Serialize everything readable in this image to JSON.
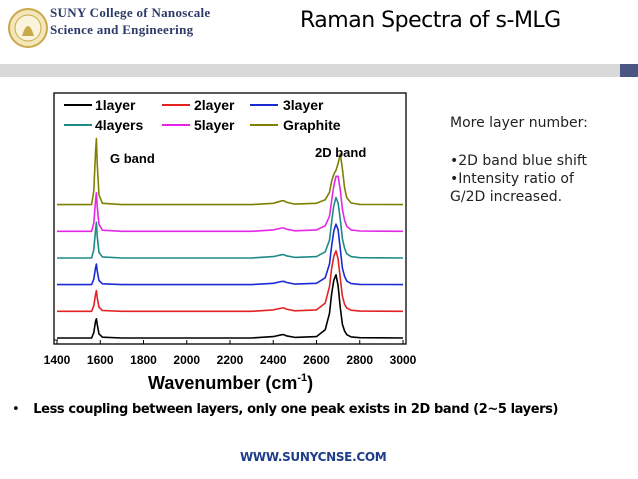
{
  "header": {
    "logo_line1": "SUNY College of Nanoscale",
    "logo_line2": "Science and Engineering",
    "title": "Raman Spectra of s-MLG",
    "accent_color": "#4a5783"
  },
  "notes": {
    "heading": "More layer number:",
    "bullet1": "•2D band blue shift",
    "bullet2": "•Intensity ratio of",
    "bullet3": "G/2D increased."
  },
  "footer": {
    "bullet_text": "Less coupling between layers, only one peak exists in 2D band (2~5 layers)",
    "website": "WWW.SUNYCNSE.COM"
  },
  "chart_data": {
    "type": "line",
    "title": "",
    "xlabel": "Wavenumber (cm",
    "xlabel_sup": "-1",
    "xlabel_close": ")",
    "ylabel": "",
    "xlim": [
      1400,
      3000
    ],
    "x_ticks": [
      1400,
      1600,
      1800,
      2000,
      2200,
      2400,
      2600,
      2800,
      3000
    ],
    "annotations": {
      "g_band": "G band",
      "band_2d": "2D band"
    },
    "x": [
      1400,
      1500,
      1560,
      1570,
      1578,
      1582,
      1586,
      1594,
      1610,
      1700,
      2300,
      2400,
      2440,
      2450,
      2460,
      2500,
      2600,
      2640,
      2660,
      2670,
      2680,
      2690,
      2700,
      2710,
      2720,
      2730,
      2740,
      2760,
      2800,
      3000
    ],
    "series": [
      {
        "name": "1layer",
        "color": "#000000",
        "offset": 0,
        "values": [
          0,
          0,
          0,
          0.2,
          0.6,
          0.7,
          0.5,
          0.15,
          0.03,
          0,
          0,
          0.05,
          0.12,
          0.12,
          0.08,
          0.02,
          0.05,
          0.3,
          0.9,
          1.6,
          2.1,
          2.3,
          1.9,
          1.1,
          0.5,
          0.25,
          0.12,
          0.04,
          0.01,
          0
        ]
      },
      {
        "name": "2layer",
        "color": "#e32222",
        "offset": 0.97,
        "values": [
          0,
          0,
          0,
          0.2,
          0.6,
          0.75,
          0.5,
          0.15,
          0.03,
          0,
          0,
          0.05,
          0.12,
          0.12,
          0.08,
          0.02,
          0.05,
          0.3,
          0.9,
          1.55,
          2.0,
          2.2,
          1.9,
          1.2,
          0.55,
          0.25,
          0.12,
          0.04,
          0.01,
          0
        ]
      },
      {
        "name": "3layer",
        "color": "#1b2bd4",
        "offset": 1.94,
        "values": [
          0,
          0,
          0,
          0.2,
          0.6,
          0.75,
          0.5,
          0.15,
          0.03,
          0,
          0,
          0.05,
          0.12,
          0.12,
          0.08,
          0.02,
          0.05,
          0.25,
          0.75,
          1.4,
          1.95,
          2.2,
          2.0,
          1.3,
          0.6,
          0.3,
          0.13,
          0.04,
          0.01,
          0
        ]
      },
      {
        "name": "4layers",
        "color": "#1e8a8a",
        "offset": 2.91,
        "values": [
          0,
          0,
          0,
          0.3,
          1.0,
          1.3,
          0.8,
          0.2,
          0.04,
          0,
          0,
          0.05,
          0.12,
          0.12,
          0.08,
          0.02,
          0.05,
          0.22,
          0.65,
          1.3,
          1.9,
          2.2,
          2.0,
          1.4,
          0.7,
          0.35,
          0.15,
          0.05,
          0.01,
          0
        ]
      },
      {
        "name": "5layer",
        "color": "#e427e4",
        "offset": 3.88,
        "values": [
          0,
          0,
          0,
          0.3,
          1.1,
          1.4,
          0.9,
          0.25,
          0.04,
          0,
          0,
          0.05,
          0.12,
          0.12,
          0.08,
          0.02,
          0.05,
          0.2,
          0.55,
          1.1,
          1.65,
          2.0,
          2.0,
          1.5,
          0.8,
          0.4,
          0.18,
          0.05,
          0.01,
          0
        ]
      },
      {
        "name": "Graphite",
        "color": "#808000",
        "offset": 4.85,
        "values": [
          0,
          0,
          0,
          0.5,
          1.9,
          2.4,
          1.5,
          0.35,
          0.05,
          0,
          0,
          0.05,
          0.14,
          0.14,
          0.09,
          0.02,
          0.05,
          0.18,
          0.45,
          0.85,
          1.1,
          1.25,
          1.5,
          1.85,
          1.3,
          0.6,
          0.25,
          0.06,
          0.01,
          0
        ]
      }
    ]
  }
}
